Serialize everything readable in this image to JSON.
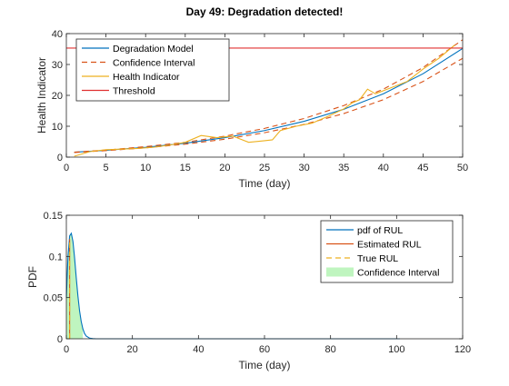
{
  "figure": {
    "title": "Day 49: Degradation detected!"
  },
  "chart_data": [
    {
      "type": "line",
      "title": "Day 49: Degradation detected!",
      "xlabel": "Time (day)",
      "ylabel": "Health Indicator",
      "xlim": [
        0,
        50
      ],
      "ylim": [
        0,
        40
      ],
      "xticks": [
        "0",
        "5",
        "10",
        "15",
        "20",
        "25",
        "30",
        "35",
        "40",
        "45",
        "50"
      ],
      "yticks": [
        "0",
        "10",
        "20",
        "30",
        "40"
      ],
      "grid": false,
      "legend_position": "top-left",
      "legend": [
        "Degradation Model",
        "Confidence Interval",
        "Health Indicator",
        "Threshold"
      ],
      "series": [
        {
          "name": "Degradation Model",
          "color": "#0072BD",
          "style": "solid",
          "x": [
            1,
            5,
            10,
            15,
            20,
            25,
            30,
            35,
            40,
            45,
            50
          ],
          "y": [
            1.6,
            2.2,
            3.2,
            4.5,
            6.3,
            8.6,
            11.6,
            15.5,
            20.5,
            27.0,
            35.2
          ]
        },
        {
          "name": "Confidence Interval",
          "color": "#D95319",
          "style": "dashed",
          "x": [
            1,
            5,
            10,
            15,
            20,
            25,
            30,
            35,
            40,
            45,
            50
          ],
          "y": [
            1.6,
            2.3,
            3.4,
            4.8,
            6.8,
            9.3,
            12.5,
            16.7,
            22.0,
            29.0,
            38.0
          ]
        },
        {
          "name": "Confidence Interval (lower)",
          "color": "#D95319",
          "style": "dashed",
          "x": [
            1,
            5,
            10,
            15,
            20,
            25,
            30,
            35,
            40,
            45,
            50
          ],
          "y": [
            1.5,
            2.1,
            3.0,
            4.2,
            5.8,
            7.9,
            10.6,
            14.1,
            18.6,
            24.5,
            32.0
          ]
        },
        {
          "name": "Health Indicator",
          "color": "#EDB120",
          "style": "solid",
          "x": [
            1,
            3,
            5,
            7,
            9,
            11,
            13,
            15,
            17,
            19,
            21,
            23,
            25,
            26,
            27,
            29,
            31,
            33,
            35,
            36,
            37,
            38,
            39,
            40,
            41,
            43,
            45,
            47,
            49
          ],
          "y": [
            0.3,
            1.8,
            2.4,
            2.6,
            2.8,
            3.2,
            3.9,
            4.8,
            7.0,
            6.3,
            6.8,
            4.8,
            5.3,
            5.6,
            8.6,
            10.0,
            11.0,
            13.2,
            15.6,
            17.5,
            18.6,
            22.0,
            20.5,
            21.5,
            22.5,
            24.5,
            28.5,
            32.0,
            36.3
          ]
        },
        {
          "name": "Threshold",
          "color": "#E03030",
          "style": "solid",
          "x": [
            0,
            50
          ],
          "y": [
            35.3,
            35.3
          ]
        }
      ]
    },
    {
      "type": "line",
      "title": "",
      "xlabel": "Time (day)",
      "ylabel": "PDF",
      "xlim": [
        0,
        120
      ],
      "ylim": [
        0,
        0.15
      ],
      "xticks": [
        "0",
        "20",
        "40",
        "60",
        "80",
        "100",
        "120"
      ],
      "yticks": [
        "0",
        "0.05",
        "0.1",
        "0.15"
      ],
      "grid": false,
      "legend_position": "top-right",
      "legend": [
        "pdf of RUL",
        "Estimated RUL",
        "True RUL",
        "Confidence Interval"
      ],
      "series": [
        {
          "name": "pdf of RUL",
          "color": "#0072BD",
          "style": "solid",
          "x": [
            0,
            0.5,
            1,
            1.5,
            2,
            2.5,
            3,
            3.5,
            4,
            4.5,
            5,
            5.5,
            6,
            7,
            8,
            9,
            10,
            20,
            40,
            60,
            80,
            100,
            101
          ],
          "y": [
            0.05,
            0.1,
            0.125,
            0.128,
            0.118,
            0.098,
            0.074,
            0.052,
            0.034,
            0.021,
            0.012,
            0.0065,
            0.0034,
            0.0008,
            0.0002,
            0,
            0,
            0,
            0,
            0,
            0,
            0,
            0
          ]
        },
        {
          "name": "Estimated RUL",
          "color": "#D95319",
          "style": "solid",
          "x": [
            1,
            1
          ],
          "y": [
            0,
            0.121
          ]
        },
        {
          "name": "True RUL",
          "color": "#EDB120",
          "style": "dashed",
          "x": [
            1,
            1
          ],
          "y": [
            0,
            0.121
          ]
        }
      ],
      "confidence_interval": {
        "name": "Confidence Interval",
        "color": "#BFF5BF",
        "x_range": [
          0,
          5
        ]
      }
    }
  ]
}
